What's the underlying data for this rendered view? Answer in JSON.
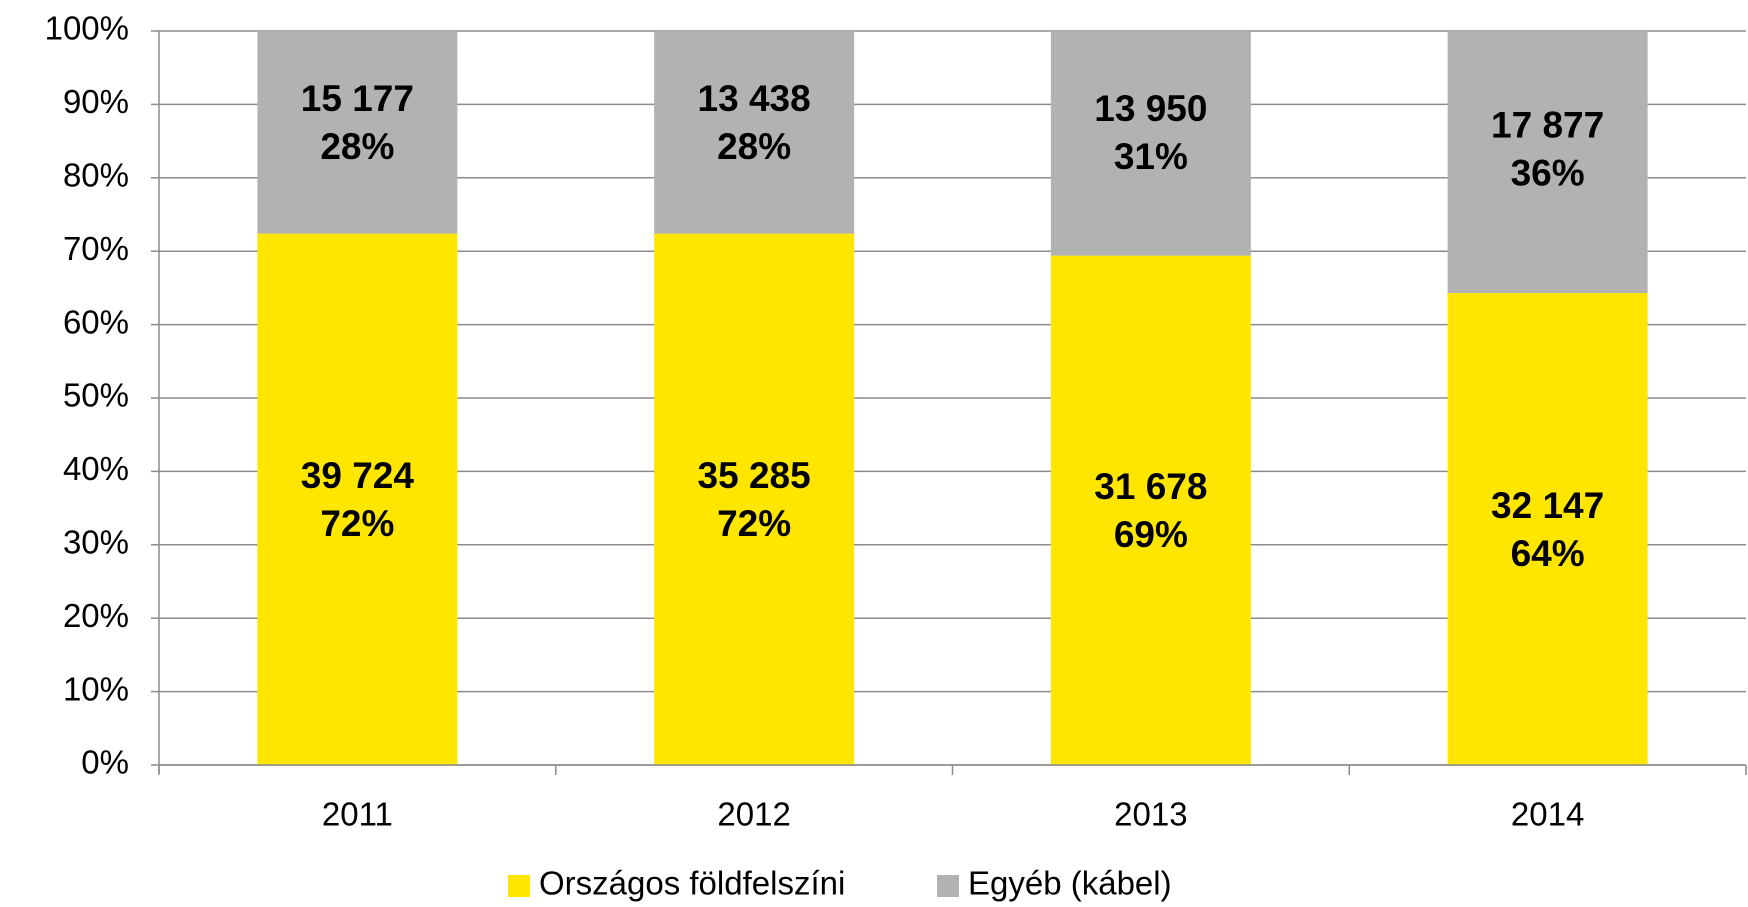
{
  "chart_data": {
    "type": "stacked_bar",
    "categories": [
      "2011",
      "2012",
      "2013",
      "2014"
    ],
    "series": [
      {
        "name": "Országos földfelszíni",
        "color": "#ffe600",
        "values": [
          72.4,
          72.4,
          69.4,
          64.3
        ],
        "count_labels": [
          "39 724",
          "35 285",
          "31 678",
          "32 147"
        ],
        "value_labels": [
          "72%",
          "72%",
          "69%",
          "64%"
        ]
      },
      {
        "name": "Egyéb (kábel)",
        "color": "#b2b2b2",
        "values": [
          27.6,
          27.6,
          30.6,
          35.7
        ],
        "count_labels": [
          "15 177",
          "13 438",
          "13 950",
          "17 877"
        ],
        "value_labels": [
          "28%",
          "28%",
          "31%",
          "36%"
        ]
      }
    ],
    "ylim": [
      0,
      100
    ],
    "yticks": [
      {
        "value": 0,
        "label": "0%"
      },
      {
        "value": 10,
        "label": "10%"
      },
      {
        "value": 20,
        "label": "20%"
      },
      {
        "value": 30,
        "label": "30%"
      },
      {
        "value": 40,
        "label": "40%"
      },
      {
        "value": 50,
        "label": "50%"
      },
      {
        "value": 60,
        "label": "60%"
      },
      {
        "value": 70,
        "label": "70%"
      },
      {
        "value": 80,
        "label": "80%"
      },
      {
        "value": 90,
        "label": "90%"
      },
      {
        "value": 100,
        "label": "100%"
      }
    ],
    "grid": true,
    "legend": "bottom"
  }
}
